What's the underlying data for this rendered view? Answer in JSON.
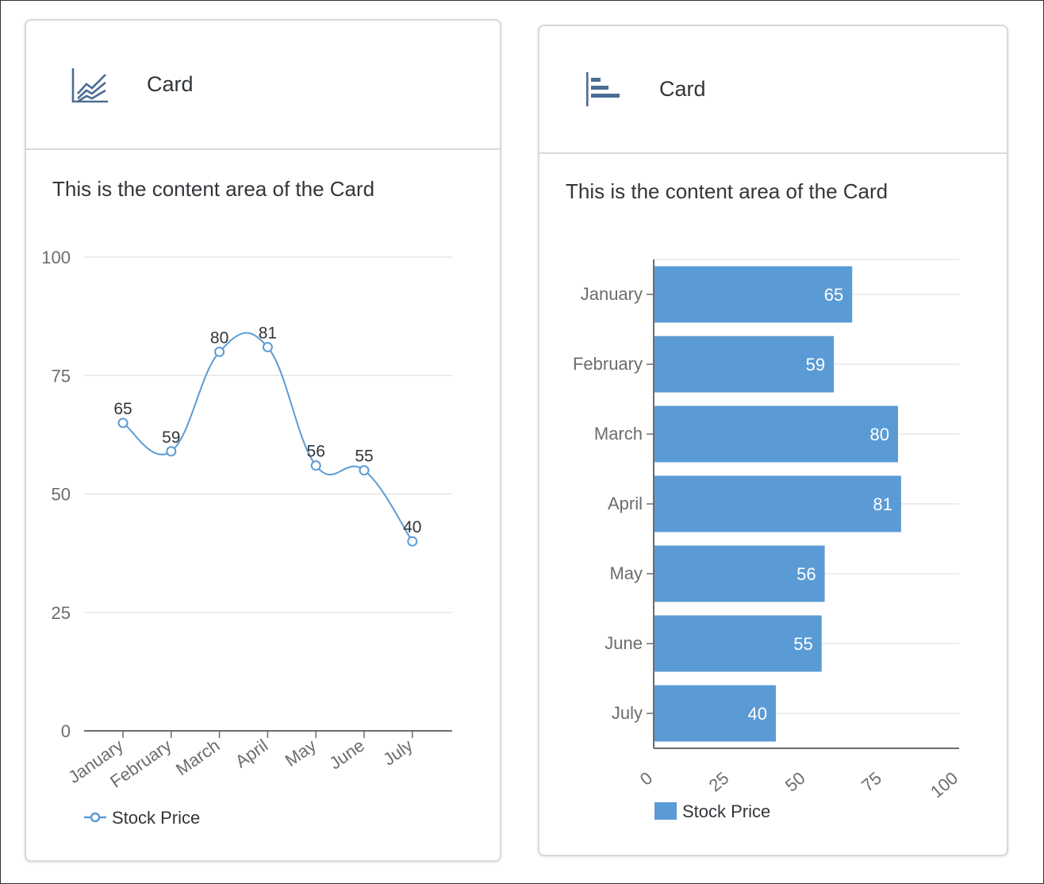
{
  "cards": [
    {
      "title": "Card",
      "icon": "line-chart-icon",
      "content_text": "This is the content area of the Card"
    },
    {
      "title": "Card",
      "icon": "horizontal-bar-chart-icon",
      "content_text": "This is the content area of the Card"
    }
  ],
  "colors": {
    "series": "#5b9bd5",
    "icon": "#4a6d94",
    "grid": "#e5e5e5",
    "axis": "#6a6d70"
  },
  "chart_data": [
    {
      "type": "line",
      "categories": [
        "January",
        "February",
        "March",
        "April",
        "May",
        "June",
        "July"
      ],
      "series": [
        {
          "name": "Stock Price",
          "values": [
            65,
            59,
            80,
            81,
            56,
            55,
            40
          ]
        }
      ],
      "ylim": [
        0,
        100
      ],
      "yticks": [
        0,
        25,
        50,
        75,
        100
      ],
      "grid": true,
      "data_labels": true,
      "legend": "bottom-left"
    },
    {
      "type": "bar",
      "orientation": "horizontal",
      "categories": [
        "January",
        "February",
        "March",
        "April",
        "May",
        "June",
        "July"
      ],
      "series": [
        {
          "name": "Stock Price",
          "values": [
            65,
            59,
            80,
            81,
            56,
            55,
            40
          ]
        }
      ],
      "xlim": [
        0,
        100
      ],
      "xticks": [
        0,
        25,
        50,
        75,
        100
      ],
      "grid": true,
      "data_labels": true,
      "legend": "bottom-left"
    }
  ]
}
